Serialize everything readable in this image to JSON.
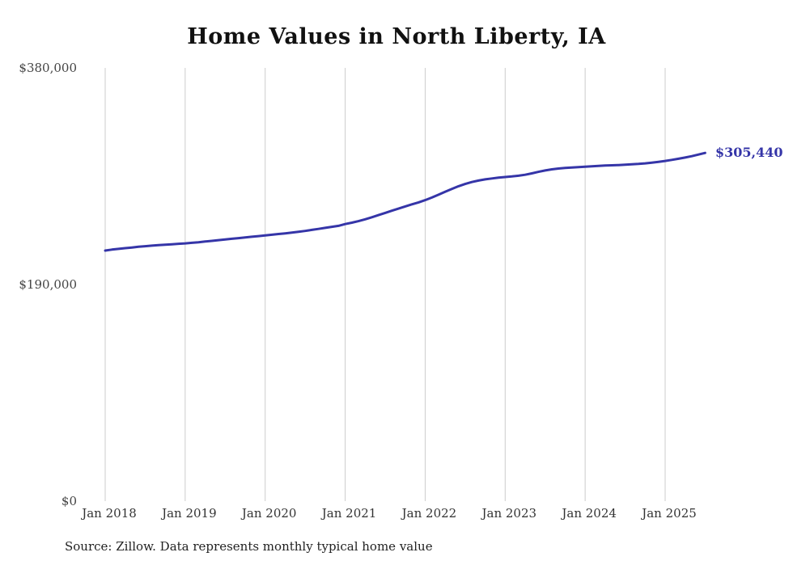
{
  "chart_data": {
    "type": "line",
    "title": "Home Values in North Liberty, IA",
    "source": "Source: Zillow. Data represents monthly typical home value",
    "end_label": "$305,440",
    "end_value": 305440,
    "x_start": "2018-01",
    "x_interval": "monthly",
    "xlabel": "",
    "ylabel": "",
    "ylim": [
      0,
      380000
    ],
    "grid": "vertical-only",
    "x_ticks": [
      "Jan 2018",
      "Jan 2019",
      "Jan 2020",
      "Jan 2021",
      "Jan 2022",
      "Jan 2023",
      "Jan 2024",
      "Jan 2025"
    ],
    "y_ticks": [
      {
        "label": "$0",
        "value": 0
      },
      {
        "label": "$190,000",
        "value": 190000
      },
      {
        "label": "$380,000",
        "value": 380000
      }
    ],
    "series": [
      {
        "name": "Typical home value",
        "values": [
          219800,
          220600,
          221300,
          221900,
          222500,
          223100,
          223600,
          224100,
          224500,
          224900,
          225300,
          225700,
          226100,
          226600,
          227100,
          227700,
          228300,
          228900,
          229500,
          230100,
          230700,
          231300,
          231900,
          232500,
          233100,
          233700,
          234300,
          234900,
          235500,
          236200,
          237000,
          237900,
          238800,
          239700,
          240600,
          241500,
          243000,
          244200,
          245600,
          247200,
          249000,
          250900,
          252800,
          254700,
          256600,
          258500,
          260300,
          262000,
          264000,
          266300,
          268800,
          271400,
          273900,
          276200,
          278200,
          279900,
          281200,
          282200,
          283000,
          283700,
          284300,
          284800,
          285400,
          286300,
          287500,
          288800,
          290000,
          291000,
          291700,
          292200,
          292600,
          293000,
          293400,
          293700,
          294100,
          294400,
          294600,
          294800,
          295100,
          295400,
          295800,
          296300,
          296900,
          297600,
          298400,
          299300,
          300300,
          301400,
          302600,
          304000,
          305440
        ]
      }
    ],
    "colors": {
      "line": "#3535a8",
      "grid": "#cccccc",
      "tick_text": "#444444",
      "title_text": "#111111"
    }
  }
}
